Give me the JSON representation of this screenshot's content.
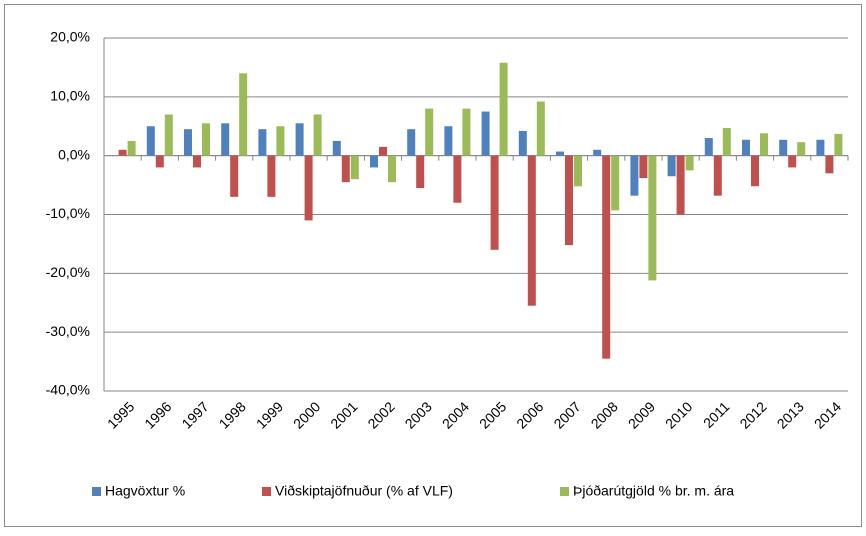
{
  "chart_data": {
    "type": "bar",
    "categories": [
      "1995",
      "1996",
      "1997",
      "1998",
      "1999",
      "2000",
      "2001",
      "2002",
      "2003",
      "2004",
      "2005",
      "2006",
      "2007",
      "2008",
      "2009",
      "2010",
      "2011",
      "2012",
      "2013",
      "2014"
    ],
    "series": [
      {
        "name": "Hagvöxtur %",
        "color": "#4f81bd",
        "values": [
          0,
          5.0,
          4.5,
          5.5,
          4.5,
          5.5,
          2.5,
          -2.0,
          4.5,
          5.0,
          7.5,
          4.2,
          0.7,
          1.0,
          -6.8,
          -3.5,
          3.0,
          2.7,
          2.7,
          2.7
        ]
      },
      {
        "name": "Viðskiptajöfnuður (% af VLF)",
        "color": "#c0504d",
        "values": [
          1.0,
          -2.0,
          -2.0,
          -7.0,
          -7.0,
          -11.0,
          -4.5,
          1.5,
          -5.5,
          -8.0,
          -16.0,
          -25.5,
          -15.2,
          -34.5,
          -3.8,
          -10.0,
          -6.8,
          -5.2,
          -2.0,
          -3.0
        ]
      },
      {
        "name": "Þjóðarútgjöld % br. m. ára",
        "color": "#9bbb59",
        "values": [
          2.5,
          7.0,
          5.5,
          14.0,
          5.0,
          7.0,
          -4.0,
          -4.5,
          8.0,
          8.0,
          15.8,
          9.2,
          -5.2,
          -9.3,
          -21.2,
          -2.5,
          4.7,
          3.8,
          2.3,
          3.7
        ]
      }
    ],
    "ylim": [
      -40,
      20
    ],
    "yticks": [
      {
        "value": -40,
        "label": "-40,0%"
      },
      {
        "value": -30,
        "label": "-30,0%"
      },
      {
        "value": -20,
        "label": "-20,0%"
      },
      {
        "value": -10,
        "label": "-10,0%"
      },
      {
        "value": 0,
        "label": "0,0%"
      },
      {
        "value": 10,
        "label": "10,0%"
      },
      {
        "value": 20,
        "label": "20,0%"
      }
    ],
    "grid": true,
    "legend": "bottom"
  }
}
